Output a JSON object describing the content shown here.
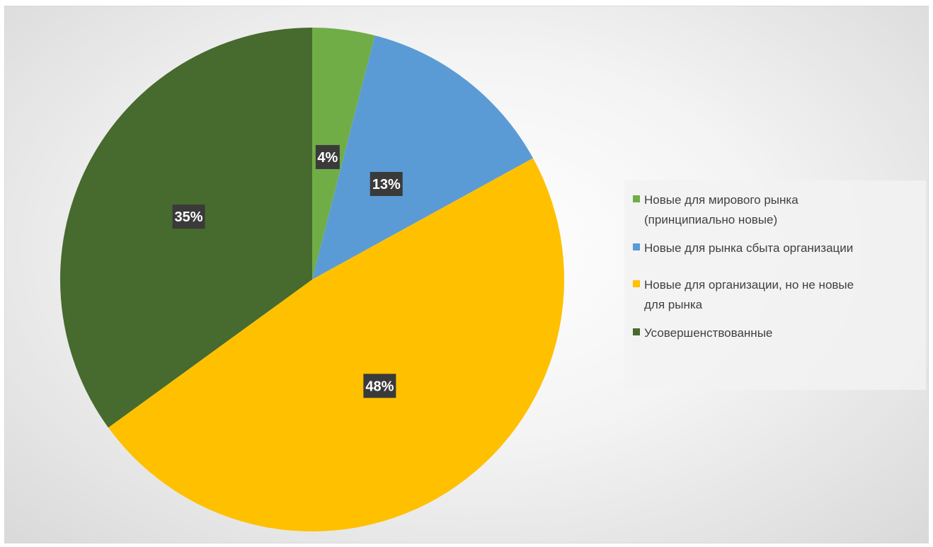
{
  "chart_data": {
    "type": "pie",
    "categories": [
      "Новые для мирового рынка (принципиально новые)",
      "Новые для рынка сбыта организации",
      "Новые для организации, но не новые для рынка",
      "Усовершенствованные"
    ],
    "values": [
      4,
      13,
      48,
      35
    ],
    "data_labels": [
      "4%",
      "13%",
      "48%",
      "35%"
    ],
    "colors": [
      "#70ad47",
      "#5b9bd5",
      "#ffc000",
      "#476a2e"
    ],
    "legend_placement": "right"
  },
  "legend": {
    "items": [
      {
        "label_line1": "Новые для мирового рынка",
        "label_line2": "(принципиально новые)",
        "color": "#70ad47"
      },
      {
        "label_line1": "Новые для рынка сбыта организации",
        "label_line2": "",
        "color": "#5b9bd5"
      },
      {
        "label_line1": "Новые для организации, но не новые",
        "label_line2": "для рынка",
        "color": "#ffc000"
      },
      {
        "label_line1": "Усовершенствованные",
        "label_line2": "",
        "color": "#476a2e"
      }
    ]
  }
}
